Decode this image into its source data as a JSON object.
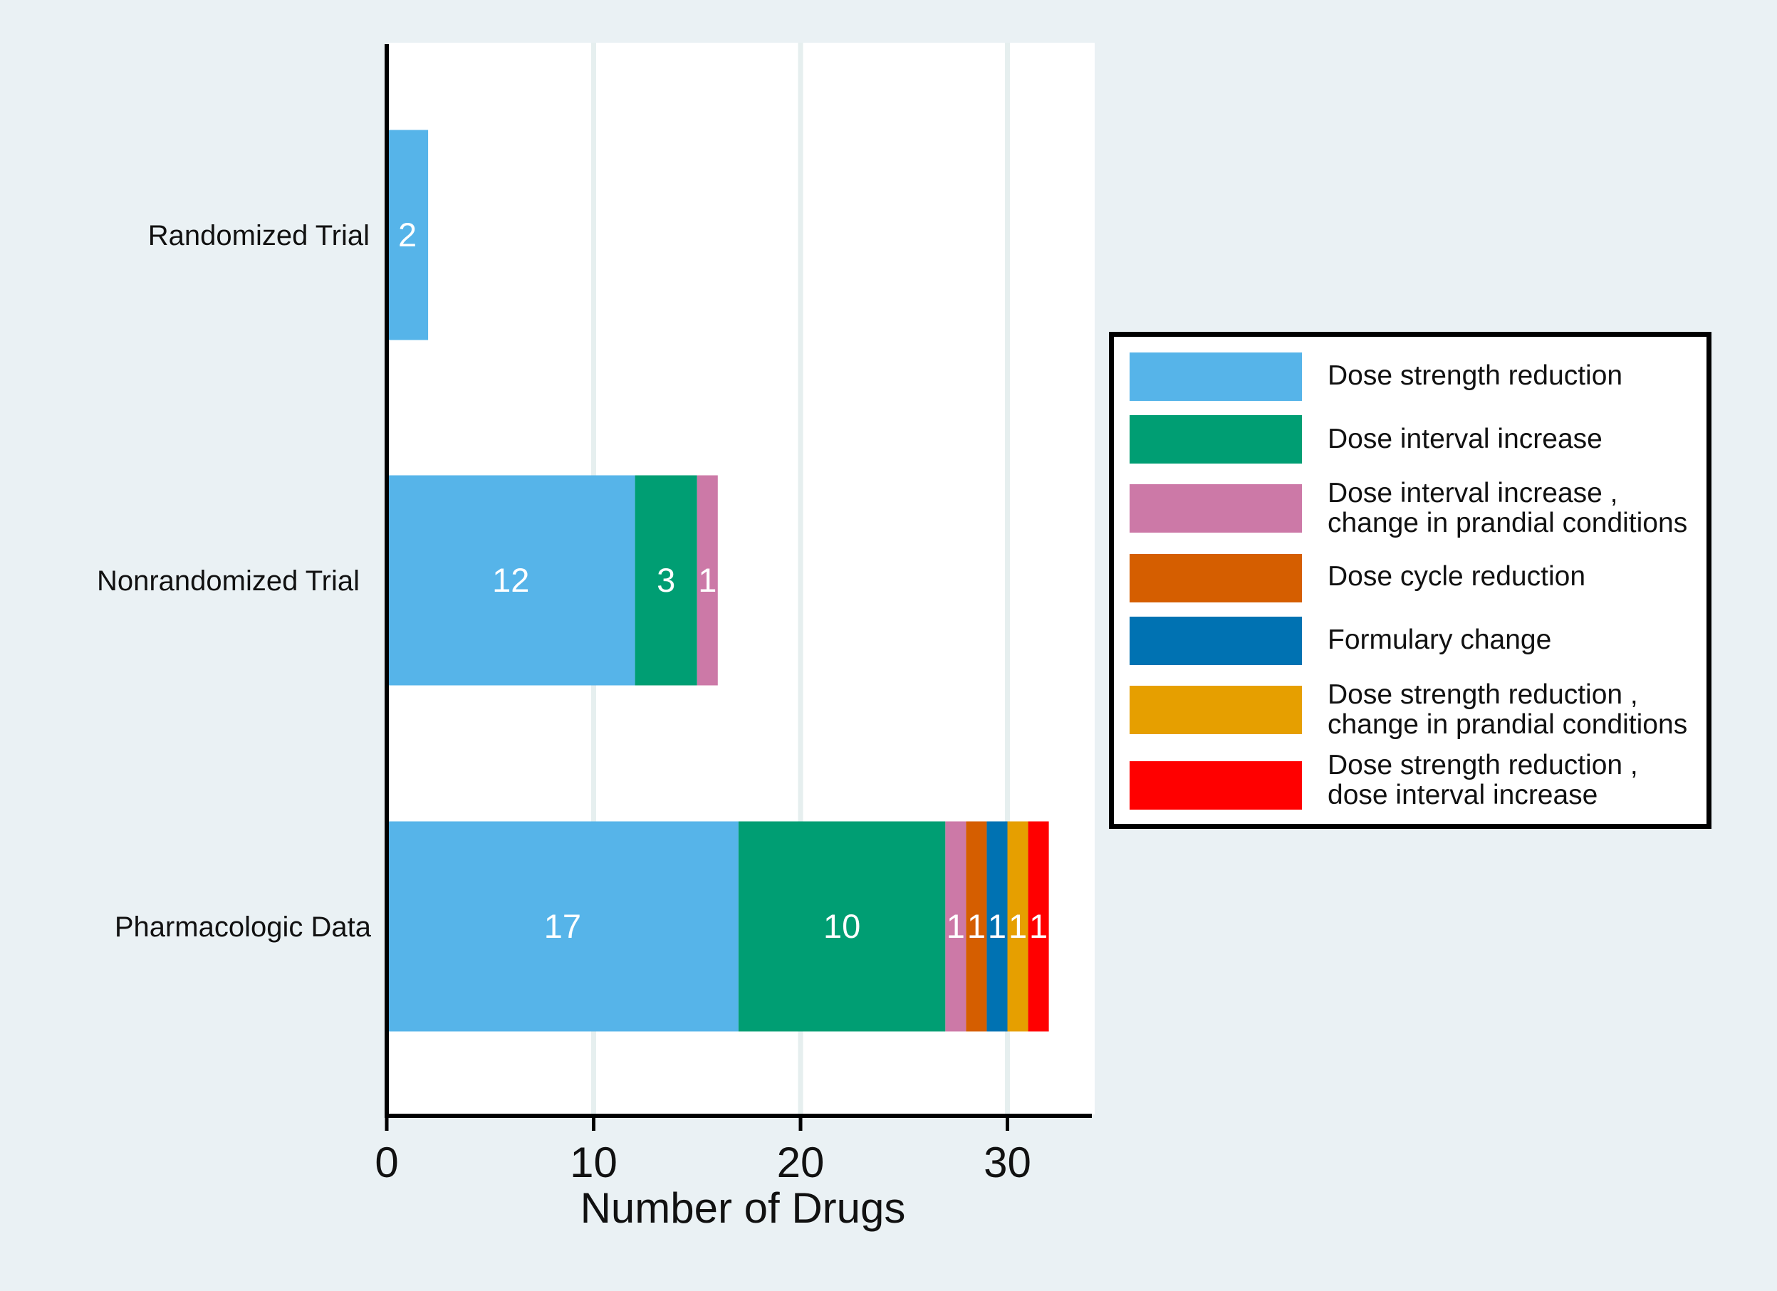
{
  "chart_data": {
    "type": "bar",
    "orientation": "horizontal",
    "stacked": true,
    "title": "",
    "xlabel": "Number of Drugs",
    "ylabel": "",
    "xlim": [
      0,
      34
    ],
    "xticks": [
      0,
      10,
      20,
      30
    ],
    "grid": true,
    "categories": [
      "Randomized Trial",
      "Nonrandomized Trial",
      "Pharmacologic Data"
    ],
    "series": [
      {
        "name": "Dose strength reduction",
        "color": "#56b4e9",
        "values": [
          2,
          12,
          17
        ]
      },
      {
        "name": "Dose interval increase",
        "color": "#009e73",
        "values": [
          0,
          3,
          10
        ]
      },
      {
        "name": "Dose interval increase ,\nchange in prandial conditions",
        "color": "#cc79a7",
        "values": [
          0,
          1,
          1
        ]
      },
      {
        "name": "Dose cycle reduction",
        "color": "#d55e00",
        "values": [
          0,
          0,
          1
        ]
      },
      {
        "name": "Formulary change",
        "color": "#0072b2",
        "values": [
          0,
          0,
          1
        ]
      },
      {
        "name": "Dose strength reduction ,\nchange in prandial conditions",
        "color": "#e69f00",
        "values": [
          0,
          0,
          1
        ]
      },
      {
        "name": "Dose strength reduction ,\ndose interval increase",
        "color": "#ff0000",
        "values": [
          0,
          0,
          1
        ]
      }
    ],
    "legend_position": "right"
  }
}
